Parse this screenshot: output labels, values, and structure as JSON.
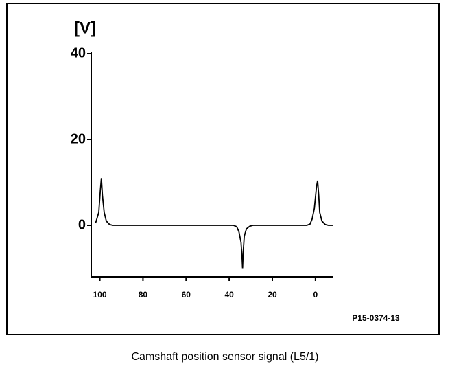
{
  "chart_data": {
    "type": "line",
    "y_label": "[V]",
    "annotation": "P15-0374-13",
    "x": [
      102,
      100.5,
      99.8,
      99.3,
      98.8,
      98,
      97,
      95.5,
      94,
      38,
      36.5,
      35.5,
      34.5,
      34,
      33.8,
      33.5,
      33,
      32,
      30.5,
      29,
      4,
      2.5,
      1.5,
      0.5,
      -0.5,
      -1,
      -1.5,
      -2,
      -3,
      -4.5,
      -6,
      -8
    ],
    "values": [
      0.5,
      3,
      8,
      11,
      7,
      3,
      1,
      0.2,
      0,
      0,
      -0.3,
      -1.5,
      -4,
      -8,
      -10,
      -6,
      -2.5,
      -0.8,
      -0.2,
      0,
      0,
      0.3,
      1.5,
      4,
      9,
      10.4,
      7,
      3,
      1,
      0.2,
      0,
      0
    ],
    "color": "#000000",
    "xlim": [
      104,
      -8
    ],
    "xticks": [
      100,
      80,
      60,
      40,
      20,
      0
    ],
    "ylim": [
      -12,
      40
    ],
    "yticks": [
      40,
      20,
      0
    ]
  },
  "caption": "Camshaft position sensor signal (L5/1)"
}
